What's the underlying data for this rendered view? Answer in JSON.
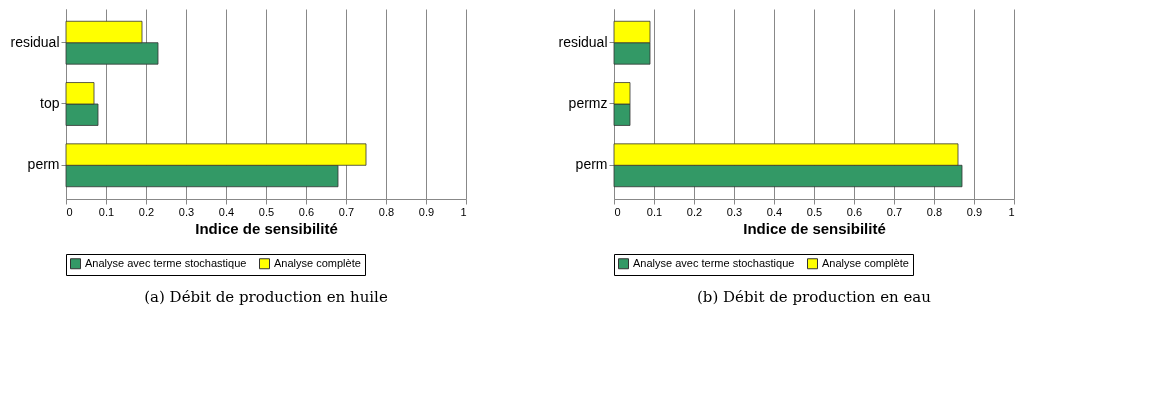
{
  "chart_data": [
    {
      "type": "bar",
      "orientation": "horizontal",
      "categories": [
        "residual",
        "top",
        "perm"
      ],
      "xlabel": "Indice de sensibilité",
      "xlim": [
        0,
        1
      ],
      "xticks": [
        0,
        0.1,
        0.2,
        0.3,
        0.4,
        0.5,
        0.6,
        0.7,
        0.8,
        0.9,
        1
      ],
      "grid": "x",
      "legend": "bottom",
      "annotations": [
        "(a) Débit de production en huile"
      ],
      "series": [
        {
          "name": "Analyse avec terme stochastique",
          "color": "#339966",
          "values": [
            0.23,
            0.08,
            0.68
          ]
        },
        {
          "name": "Analyse complète",
          "color": "#ffff00",
          "values": [
            0.19,
            0.07,
            0.75
          ]
        }
      ]
    },
    {
      "type": "bar",
      "orientation": "horizontal",
      "categories": [
        "residual",
        "permz",
        "perm"
      ],
      "xlabel": "Indice de sensibilité",
      "xlim": [
        0,
        1
      ],
      "xticks": [
        0,
        0.1,
        0.2,
        0.3,
        0.4,
        0.5,
        0.6,
        0.7,
        0.8,
        0.9,
        1
      ],
      "grid": "x",
      "legend": "bottom",
      "annotations": [
        "(b) Débit de production en eau"
      ],
      "series": [
        {
          "name": "Analyse avec terme stochastique",
          "color": "#339966",
          "values": [
            0.09,
            0.04,
            0.87
          ]
        },
        {
          "name": "Analyse complète",
          "color": "#ffff00",
          "values": [
            0.09,
            0.04,
            0.86
          ]
        }
      ]
    }
  ]
}
